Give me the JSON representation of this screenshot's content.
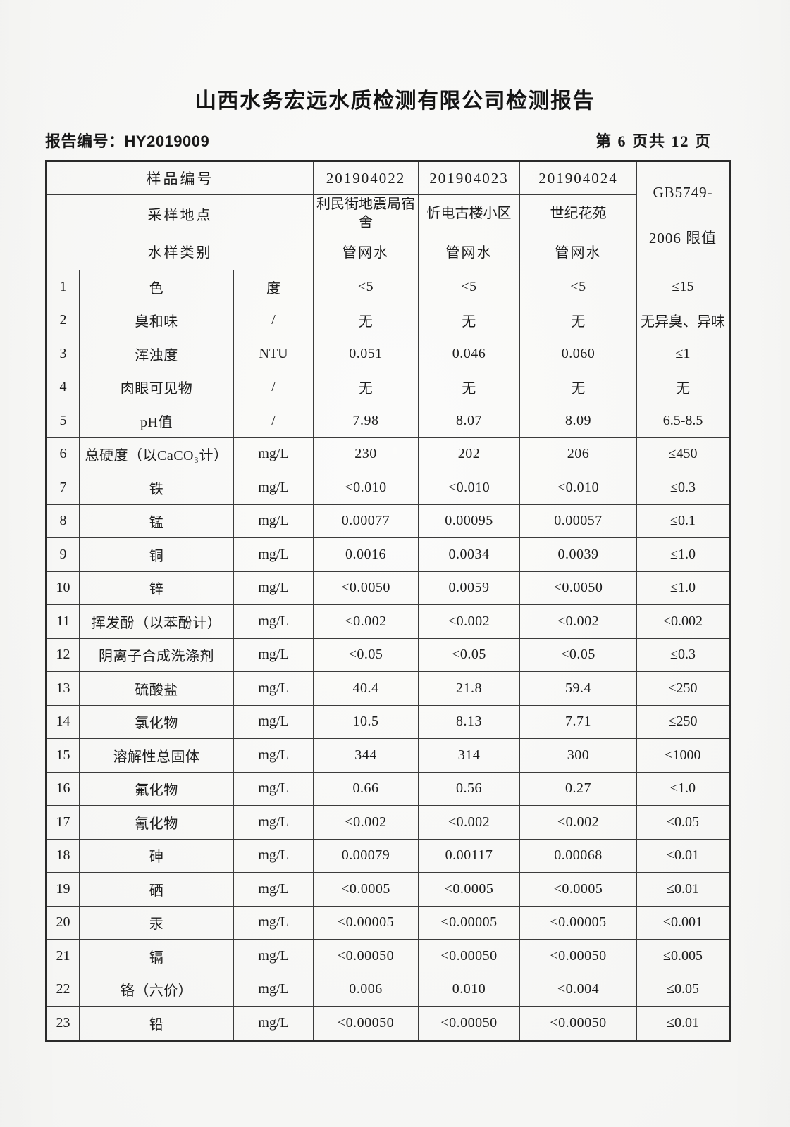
{
  "report": {
    "title": "山西水务宏远水质检测有限公司检测报告",
    "report_no_label": "报告编号：",
    "report_no": "HY2019009",
    "page_indicator": "第 6 页共 12 页"
  },
  "table": {
    "header": {
      "sample_id_label": "样品编号",
      "location_label": "采样地点",
      "water_type_label": "水样类别",
      "sample_ids": [
        "201904022",
        "201904023",
        "201904024"
      ],
      "locations": [
        "利民街地震局宿舍",
        "忻电古楼小区",
        "世纪花苑"
      ],
      "water_types": [
        "管网水",
        "管网水",
        "管网水"
      ],
      "limit_line1": "GB5749-",
      "limit_line2": "2006 限值"
    },
    "rows": [
      {
        "no": "1",
        "name": "色",
        "unit": "度",
        "values": [
          "<5",
          "<5",
          "<5"
        ],
        "limit": "≤15"
      },
      {
        "no": "2",
        "name": "臭和味",
        "unit": "/",
        "values": [
          "无",
          "无",
          "无"
        ],
        "limit": "无异臭、异味"
      },
      {
        "no": "3",
        "name": "浑浊度",
        "unit": "NTU",
        "values": [
          "0.051",
          "0.046",
          "0.060"
        ],
        "limit": "≤1"
      },
      {
        "no": "4",
        "name": "肉眼可见物",
        "unit": "/",
        "values": [
          "无",
          "无",
          "无"
        ],
        "limit": "无"
      },
      {
        "no": "5",
        "name": "pH值",
        "unit": "/",
        "values": [
          "7.98",
          "8.07",
          "8.09"
        ],
        "limit": "6.5-8.5"
      },
      {
        "no": "6",
        "name": "总硬度（以CaCO₃计）",
        "unit": "mg/L",
        "values": [
          "230",
          "202",
          "206"
        ],
        "limit": "≤450"
      },
      {
        "no": "7",
        "name": "铁",
        "unit": "mg/L",
        "values": [
          "<0.010",
          "<0.010",
          "<0.010"
        ],
        "limit": "≤0.3"
      },
      {
        "no": "8",
        "name": "锰",
        "unit": "mg/L",
        "values": [
          "0.00077",
          "0.00095",
          "0.00057"
        ],
        "limit": "≤0.1"
      },
      {
        "no": "9",
        "name": "铜",
        "unit": "mg/L",
        "values": [
          "0.0016",
          "0.0034",
          "0.0039"
        ],
        "limit": "≤1.0"
      },
      {
        "no": "10",
        "name": "锌",
        "unit": "mg/L",
        "values": [
          "<0.0050",
          "0.0059",
          "<0.0050"
        ],
        "limit": "≤1.0"
      },
      {
        "no": "11",
        "name": "挥发酚（以苯酚计）",
        "unit": "mg/L",
        "values": [
          "<0.002",
          "<0.002",
          "<0.002"
        ],
        "limit": "≤0.002"
      },
      {
        "no": "12",
        "name": "阴离子合成洗涤剂",
        "unit": "mg/L",
        "values": [
          "<0.05",
          "<0.05",
          "<0.05"
        ],
        "limit": "≤0.3"
      },
      {
        "no": "13",
        "name": "硫酸盐",
        "unit": "mg/L",
        "values": [
          "40.4",
          "21.8",
          "59.4"
        ],
        "limit": "≤250"
      },
      {
        "no": "14",
        "name": "氯化物",
        "unit": "mg/L",
        "values": [
          "10.5",
          "8.13",
          "7.71"
        ],
        "limit": "≤250"
      },
      {
        "no": "15",
        "name": "溶解性总固体",
        "unit": "mg/L",
        "values": [
          "344",
          "314",
          "300"
        ],
        "limit": "≤1000"
      },
      {
        "no": "16",
        "name": "氟化物",
        "unit": "mg/L",
        "values": [
          "0.66",
          "0.56",
          "0.27"
        ],
        "limit": "≤1.0"
      },
      {
        "no": "17",
        "name": "氰化物",
        "unit": "mg/L",
        "values": [
          "<0.002",
          "<0.002",
          "<0.002"
        ],
        "limit": "≤0.05"
      },
      {
        "no": "18",
        "name": "砷",
        "unit": "mg/L",
        "values": [
          "0.00079",
          "0.00117",
          "0.00068"
        ],
        "limit": "≤0.01"
      },
      {
        "no": "19",
        "name": "硒",
        "unit": "mg/L",
        "values": [
          "<0.0005",
          "<0.0005",
          "<0.0005"
        ],
        "limit": "≤0.01"
      },
      {
        "no": "20",
        "name": "汞",
        "unit": "mg/L",
        "values": [
          "<0.00005",
          "<0.00005",
          "<0.00005"
        ],
        "limit": "≤0.001"
      },
      {
        "no": "21",
        "name": "镉",
        "unit": "mg/L",
        "values": [
          "<0.00050",
          "<0.00050",
          "<0.00050"
        ],
        "limit": "≤0.005"
      },
      {
        "no": "22",
        "name": "铬（六价）",
        "unit": "mg/L",
        "values": [
          "0.006",
          "0.010",
          "<0.004"
        ],
        "limit": "≤0.05"
      },
      {
        "no": "23",
        "name": "铅",
        "unit": "mg/L",
        "values": [
          "<0.00050",
          "<0.00050",
          "<0.00050"
        ],
        "limit": "≤0.01"
      }
    ]
  }
}
